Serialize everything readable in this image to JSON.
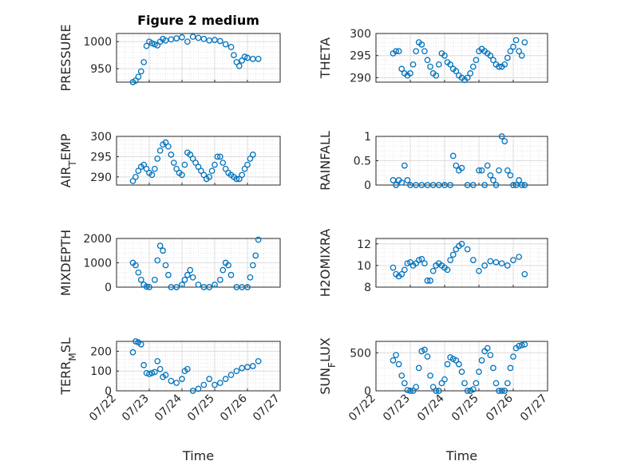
{
  "chart_data": [
    {
      "type": "scatter",
      "title": "Figure 2 medium",
      "ylabel": "PRESSURE",
      "xlabel": "",
      "ylim": [
        925,
        1015
      ],
      "yticks": [
        950,
        1000
      ],
      "xlim": [
        "07/22",
        "07/27"
      ],
      "xticks": [],
      "grid": "on",
      "marker": "open-circle",
      "color": "#0072BD",
      "x": [
        "07/22 12:00",
        "07/22 14:00",
        "07/22 16:00",
        "07/22 18:00",
        "07/22 20:00",
        "07/22 22:00",
        "07/23 00:00",
        "07/23 02:00",
        "07/23 04:00",
        "07/23 06:00",
        "07/23 08:00",
        "07/23 10:00",
        "07/23 12:00",
        "07/23 16:00",
        "07/23 20:00",
        "07/24 00:00",
        "07/24 04:00",
        "07/24 08:00",
        "07/24 12:00",
        "07/24 16:00",
        "07/24 20:00",
        "07/25 00:00",
        "07/25 04:00",
        "07/25 08:00",
        "07/25 12:00",
        "07/25 14:00",
        "07/25 16:00",
        "07/25 18:00",
        "07/25 20:00",
        "07/25 22:00",
        "07/26 00:00",
        "07/26 04:00",
        "07/26 08:00"
      ],
      "y": [
        925,
        928,
        935,
        945,
        962,
        992,
        1000,
        997,
        995,
        993,
        1000,
        1005,
        1002,
        1004,
        1006,
        1008,
        1000,
        1009,
        1007,
        1005,
        1002,
        1003,
        1001,
        995,
        990,
        975,
        962,
        955,
        965,
        972,
        970,
        968,
        968
      ]
    },
    {
      "type": "scatter",
      "title": "",
      "ylabel": "THETA",
      "xlabel": "",
      "ylim": [
        289,
        300
      ],
      "yticks": [
        290,
        295,
        300
      ],
      "xlim": [
        "07/22",
        "07/27"
      ],
      "xticks": [],
      "grid": "on",
      "marker": "open-circle",
      "color": "#0072BD",
      "x": [
        "07/22 12:00",
        "07/22 14:00",
        "07/22 16:00",
        "07/22 18:00",
        "07/22 20:00",
        "07/22 22:00",
        "07/23 00:00",
        "07/23 02:00",
        "07/23 04:00",
        "07/23 06:00",
        "07/23 08:00",
        "07/23 10:00",
        "07/23 12:00",
        "07/23 14:00",
        "07/23 16:00",
        "07/23 18:00",
        "07/23 20:00",
        "07/23 22:00",
        "07/24 00:00",
        "07/24 02:00",
        "07/24 04:00",
        "07/24 06:00",
        "07/24 08:00",
        "07/24 10:00",
        "07/24 12:00",
        "07/24 14:00",
        "07/24 16:00",
        "07/24 18:00",
        "07/24 20:00",
        "07/24 22:00",
        "07/25 00:00",
        "07/25 02:00",
        "07/25 04:00",
        "07/25 06:00",
        "07/25 08:00",
        "07/25 10:00",
        "07/25 12:00",
        "07/25 14:00",
        "07/25 16:00",
        "07/25 18:00",
        "07/25 20:00",
        "07/25 22:00",
        "07/26 00:00",
        "07/26 02:00",
        "07/26 04:00",
        "07/26 06:00",
        "07/26 08:00"
      ],
      "y": [
        295.5,
        296,
        296,
        292,
        291,
        290.5,
        291,
        293,
        296,
        298,
        297.5,
        296,
        294,
        292.5,
        291,
        290.5,
        293,
        295.5,
        295,
        293.5,
        293,
        292,
        291.5,
        290.5,
        290,
        289.5,
        290,
        291,
        292.5,
        294,
        296,
        296.5,
        296,
        295.5,
        295,
        294,
        293,
        292.5,
        292.5,
        293,
        294.5,
        296,
        297,
        298.5,
        296,
        295,
        298
      ]
    },
    {
      "type": "scatter",
      "title": "",
      "ylabel": "AIR_TEMP",
      "xlabel": "",
      "ylim": [
        288,
        300
      ],
      "yticks": [
        290,
        295,
        300
      ],
      "xlim": [
        "07/22",
        "07/27"
      ],
      "xticks": [],
      "grid": "on",
      "marker": "open-circle",
      "color": "#0072BD",
      "x": [
        "07/22 12:00",
        "07/22 14:00",
        "07/22 16:00",
        "07/22 18:00",
        "07/22 20:00",
        "07/22 22:00",
        "07/23 00:00",
        "07/23 02:00",
        "07/23 04:00",
        "07/23 06:00",
        "07/23 08:00",
        "07/23 10:00",
        "07/23 12:00",
        "07/23 14:00",
        "07/23 16:00",
        "07/23 18:00",
        "07/23 20:00",
        "07/23 22:00",
        "07/24 00:00",
        "07/24 02:00",
        "07/24 04:00",
        "07/24 06:00",
        "07/24 08:00",
        "07/24 10:00",
        "07/24 12:00",
        "07/24 14:00",
        "07/24 16:00",
        "07/24 18:00",
        "07/24 20:00",
        "07/24 22:00",
        "07/25 00:00",
        "07/25 02:00",
        "07/25 04:00",
        "07/25 06:00",
        "07/25 08:00",
        "07/25 10:00",
        "07/25 12:00",
        "07/25 14:00",
        "07/25 16:00",
        "07/25 18:00",
        "07/25 20:00",
        "07/25 22:00",
        "07/26 00:00",
        "07/26 02:00",
        "07/26 04:00"
      ],
      "y": [
        289,
        290,
        291.5,
        292.5,
        293,
        292,
        291,
        290.5,
        292,
        294.5,
        296.5,
        298,
        298.5,
        297.5,
        295.5,
        293.5,
        292,
        291,
        290.5,
        293,
        296,
        295.5,
        294.5,
        293.5,
        292.5,
        291.5,
        290.5,
        289.5,
        290,
        291.5,
        293,
        295,
        295,
        293.5,
        292,
        291,
        290.5,
        290,
        289.5,
        289.5,
        290.5,
        292,
        293,
        294.5,
        295.5
      ]
    },
    {
      "type": "scatter",
      "title": "",
      "ylabel": "RAINFALL",
      "xlabel": "",
      "ylim": [
        0,
        1
      ],
      "yticks": [
        0,
        0.5,
        1
      ],
      "xlim": [
        "07/22",
        "07/27"
      ],
      "xticks": [],
      "grid": "on",
      "marker": "open-circle",
      "color": "#0072BD",
      "x": [
        "07/22 12:00",
        "07/22 14:00",
        "07/22 16:00",
        "07/22 18:00",
        "07/22 20:00",
        "07/22 22:00",
        "07/23 00:00",
        "07/23 04:00",
        "07/23 08:00",
        "07/23 12:00",
        "07/23 16:00",
        "07/23 20:00",
        "07/24 00:00",
        "07/24 04:00",
        "07/24 06:00",
        "07/24 08:00",
        "07/24 10:00",
        "07/24 12:00",
        "07/24 16:00",
        "07/24 20:00",
        "07/25 00:00",
        "07/25 02:00",
        "07/25 04:00",
        "07/25 06:00",
        "07/25 08:00",
        "07/25 10:00",
        "07/25 12:00",
        "07/25 14:00",
        "07/25 16:00",
        "07/25 18:00",
        "07/25 20:00",
        "07/25 22:00",
        "07/26 00:00",
        "07/26 02:00",
        "07/26 04:00",
        "07/26 06:00",
        "07/26 08:00"
      ],
      "y": [
        0.1,
        0,
        0.1,
        0.05,
        0.4,
        0.1,
        0,
        0,
        0,
        0,
        0,
        0,
        0,
        0,
        0.6,
        0.4,
        0.3,
        0.35,
        0,
        0,
        0.3,
        0.3,
        0,
        0.4,
        0.2,
        0.1,
        0,
        0.3,
        1.0,
        0.9,
        0.3,
        0.2,
        0,
        0,
        0.1,
        0,
        0
      ]
    },
    {
      "type": "scatter",
      "title": "",
      "ylabel": "MIXDEPTH",
      "xlabel": "",
      "ylim": [
        0,
        2000
      ],
      "yticks": [
        0,
        1000,
        2000
      ],
      "xlim": [
        "07/22",
        "07/27"
      ],
      "xticks": [],
      "grid": "on",
      "marker": "open-circle",
      "color": "#0072BD",
      "x": [
        "07/22 12:00",
        "07/22 14:00",
        "07/22 16:00",
        "07/22 18:00",
        "07/22 20:00",
        "07/22 22:00",
        "07/23 00:00",
        "07/23 04:00",
        "07/23 06:00",
        "07/23 08:00",
        "07/23 10:00",
        "07/23 12:00",
        "07/23 14:00",
        "07/23 16:00",
        "07/23 20:00",
        "07/24 00:00",
        "07/24 02:00",
        "07/24 04:00",
        "07/24 06:00",
        "07/24 08:00",
        "07/24 12:00",
        "07/24 16:00",
        "07/24 20:00",
        "07/25 00:00",
        "07/25 04:00",
        "07/25 06:00",
        "07/25 08:00",
        "07/25 10:00",
        "07/25 12:00",
        "07/25 16:00",
        "07/25 20:00",
        "07/26 00:00",
        "07/26 02:00",
        "07/26 04:00",
        "07/26 06:00",
        "07/26 08:00"
      ],
      "y": [
        1000,
        900,
        600,
        300,
        100,
        20,
        0,
        300,
        1100,
        1700,
        1500,
        900,
        500,
        0,
        0,
        100,
        300,
        500,
        700,
        400,
        100,
        0,
        0,
        100,
        300,
        700,
        1000,
        900,
        500,
        0,
        0,
        0,
        400,
        900,
        1300,
        1950
      ]
    },
    {
      "type": "scatter",
      "title": "",
      "ylabel": "H2OMIXRA",
      "xlabel": "",
      "ylim": [
        8,
        12.5
      ],
      "yticks": [
        8,
        10,
        12
      ],
      "xlim": [
        "07/22",
        "07/27"
      ],
      "xticks": [],
      "grid": "on",
      "marker": "open-circle",
      "color": "#0072BD",
      "x": [
        "07/22 12:00",
        "07/22 14:00",
        "07/22 16:00",
        "07/22 18:00",
        "07/22 20:00",
        "07/22 22:00",
        "07/23 00:00",
        "07/23 02:00",
        "07/23 04:00",
        "07/23 06:00",
        "07/23 08:00",
        "07/23 10:00",
        "07/23 12:00",
        "07/23 14:00",
        "07/23 16:00",
        "07/23 18:00",
        "07/23 20:00",
        "07/23 22:00",
        "07/24 00:00",
        "07/24 02:00",
        "07/24 04:00",
        "07/24 06:00",
        "07/24 08:00",
        "07/24 10:00",
        "07/24 12:00",
        "07/24 16:00",
        "07/24 20:00",
        "07/25 00:00",
        "07/25 04:00",
        "07/25 08:00",
        "07/25 12:00",
        "07/25 16:00",
        "07/25 20:00",
        "07/26 00:00",
        "07/26 04:00",
        "07/26 08:00"
      ],
      "y": [
        9.8,
        9.2,
        9,
        9.2,
        9.6,
        10.2,
        10.3,
        10,
        10.2,
        10.5,
        10.6,
        10.2,
        8.6,
        8.6,
        9.5,
        10,
        10.2,
        10,
        9.8,
        9.6,
        10.5,
        11,
        11.5,
        11.8,
        12,
        11.5,
        10.5,
        9.5,
        10,
        10.4,
        10.3,
        10.2,
        10,
        10.5,
        10.8,
        9.2
      ]
    },
    {
      "type": "scatter",
      "title": "",
      "ylabel": "TERR_MSL",
      "xlabel": "Time",
      "ylim": [
        0,
        250
      ],
      "yticks": [
        0,
        100,
        200
      ],
      "xlim": [
        "07/22",
        "07/27"
      ],
      "xticks": [
        "07/22",
        "07/23",
        "07/24",
        "07/25",
        "07/26",
        "07/27"
      ],
      "grid": "on",
      "marker": "open-circle",
      "color": "#0072BD",
      "x": [
        "07/22 12:00",
        "07/22 14:00",
        "07/22 16:00",
        "07/22 18:00",
        "07/22 20:00",
        "07/22 22:00",
        "07/23 00:00",
        "07/23 02:00",
        "07/23 04:00",
        "07/23 06:00",
        "07/23 08:00",
        "07/23 10:00",
        "07/23 12:00",
        "07/23 16:00",
        "07/23 20:00",
        "07/24 00:00",
        "07/24 02:00",
        "07/24 04:00",
        "07/24 08:00",
        "07/24 12:00",
        "07/24 16:00",
        "07/24 20:00",
        "07/25 00:00",
        "07/25 04:00",
        "07/25 08:00",
        "07/25 12:00",
        "07/25 16:00",
        "07/25 20:00",
        "07/26 00:00",
        "07/26 04:00",
        "07/26 08:00"
      ],
      "y": [
        195,
        250,
        245,
        235,
        130,
        90,
        85,
        90,
        95,
        150,
        110,
        70,
        80,
        50,
        40,
        60,
        100,
        110,
        0,
        10,
        30,
        60,
        30,
        40,
        60,
        80,
        100,
        115,
        120,
        125,
        150
      ]
    },
    {
      "type": "scatter",
      "title": "",
      "ylabel": "SUN_FLUX",
      "xlabel": "Time",
      "ylim": [
        0,
        650
      ],
      "yticks": [
        0,
        500
      ],
      "xlim": [
        "07/22",
        "07/27"
      ],
      "xticks": [
        "07/22",
        "07/23",
        "07/24",
        "07/25",
        "07/26",
        "07/27"
      ],
      "grid": "on",
      "marker": "open-circle",
      "color": "#0072BD",
      "x": [
        "07/22 12:00",
        "07/22 14:00",
        "07/22 16:00",
        "07/22 18:00",
        "07/22 20:00",
        "07/22 22:00",
        "07/23 00:00",
        "07/23 02:00",
        "07/23 04:00",
        "07/23 06:00",
        "07/23 08:00",
        "07/23 10:00",
        "07/23 12:00",
        "07/23 14:00",
        "07/23 16:00",
        "07/23 18:00",
        "07/23 20:00",
        "07/23 22:00",
        "07/24 00:00",
        "07/24 02:00",
        "07/24 04:00",
        "07/24 06:00",
        "07/24 08:00",
        "07/24 10:00",
        "07/24 12:00",
        "07/24 14:00",
        "07/24 16:00",
        "07/24 18:00",
        "07/24 20:00",
        "07/24 22:00",
        "07/25 00:00",
        "07/25 02:00",
        "07/25 04:00",
        "07/25 06:00",
        "07/25 08:00",
        "07/25 10:00",
        "07/25 12:00",
        "07/25 14:00",
        "07/25 16:00",
        "07/25 18:00",
        "07/25 20:00",
        "07/25 22:00",
        "07/26 00:00",
        "07/26 02:00",
        "07/26 04:00",
        "07/26 06:00",
        "07/26 08:00"
      ],
      "y": [
        400,
        470,
        350,
        200,
        100,
        10,
        0,
        0,
        50,
        300,
        520,
        540,
        450,
        200,
        50,
        0,
        0,
        100,
        150,
        350,
        440,
        420,
        400,
        350,
        250,
        100,
        0,
        0,
        20,
        100,
        250,
        400,
        520,
        560,
        470,
        300,
        100,
        0,
        0,
        0,
        100,
        300,
        450,
        560,
        590,
        600,
        610
      ]
    }
  ]
}
